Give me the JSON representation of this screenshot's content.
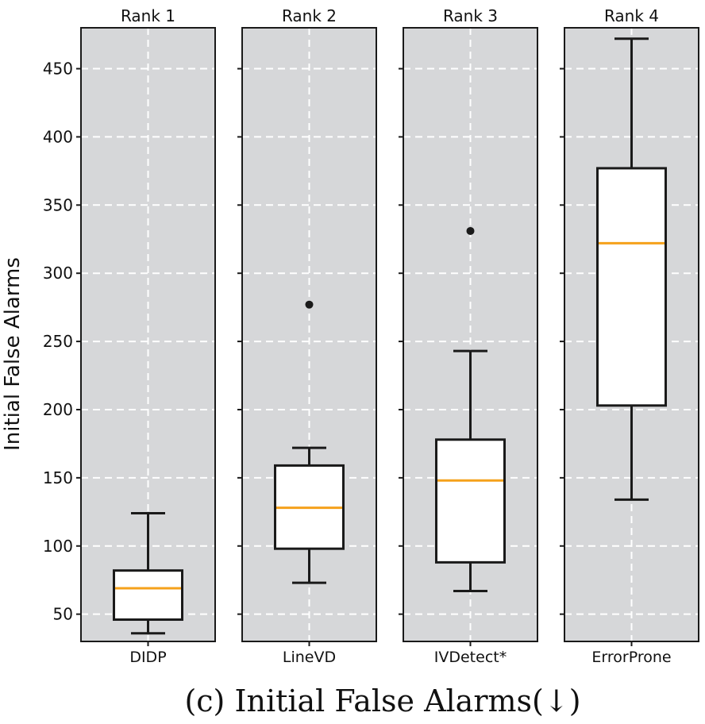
{
  "chart_data": {
    "type": "box",
    "ylabel": "Initial False Alarms",
    "ylim": [
      30,
      480
    ],
    "yticks": [
      50,
      100,
      150,
      200,
      250,
      300,
      350,
      400,
      450
    ],
    "grid": true,
    "caption": "(c) Initial False Alarms(↓)",
    "panels": [
      {
        "title": "Rank 1",
        "category": "DIDP",
        "whisker_low": 36,
        "q1": 46,
        "median": 69,
        "q3": 82,
        "whisker_high": 124,
        "outliers": []
      },
      {
        "title": "Rank 2",
        "category": "LineVD",
        "whisker_low": 73,
        "q1": 98,
        "median": 128,
        "q3": 159,
        "whisker_high": 172,
        "outliers": [
          277
        ]
      },
      {
        "title": "Rank 3",
        "category": "IVDetect*",
        "whisker_low": 67,
        "q1": 88,
        "median": 148,
        "q3": 178,
        "whisker_high": 243,
        "outliers": [
          331
        ]
      },
      {
        "title": "Rank 4",
        "category": "ErrorProne",
        "whisker_low": 134,
        "q1": 203,
        "median": 322,
        "q3": 377,
        "whisker_high": 472,
        "outliers": []
      }
    ],
    "colors": {
      "panel_bg": "#d6d7d9",
      "grid": "#ffffff",
      "box_fill": "#ffffff",
      "box_edge": "#1a1a1a",
      "median": "#f5a11b",
      "outlier": "#1a1a1a"
    }
  }
}
